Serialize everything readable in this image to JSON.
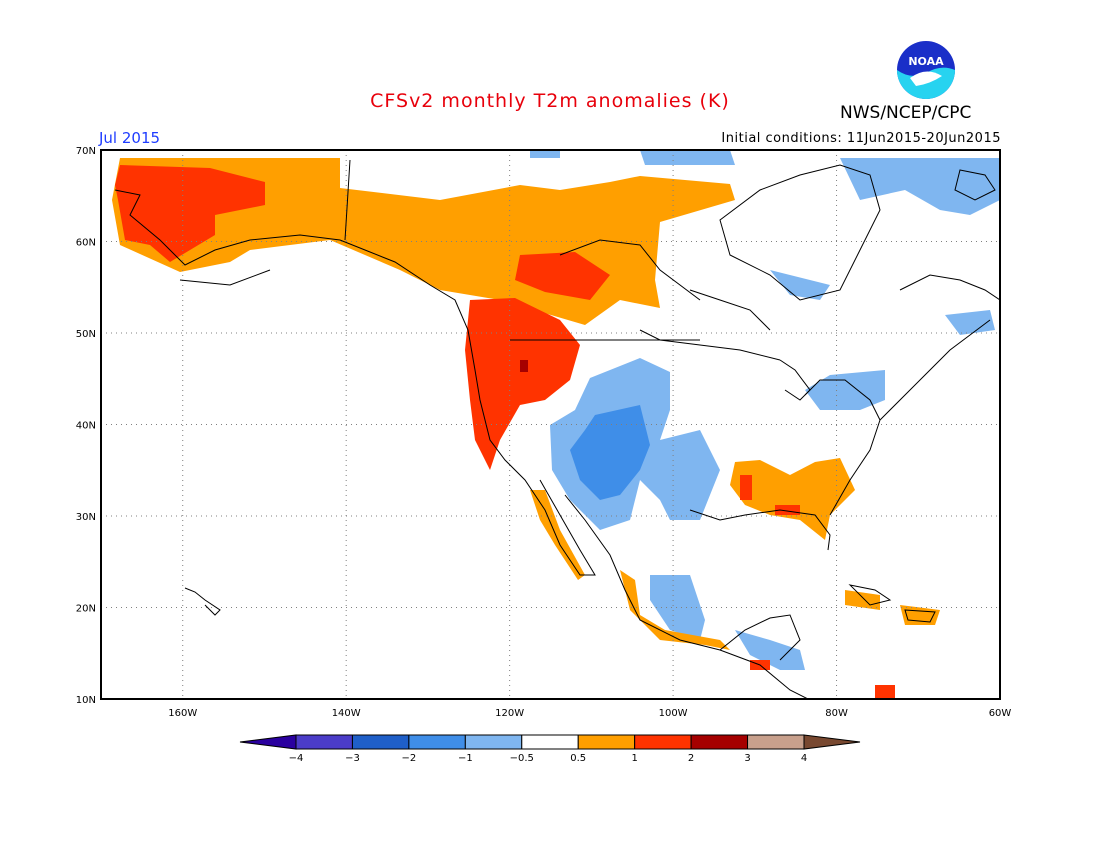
{
  "title": "CFSv2 monthly T2m anomalies (K)",
  "agency": "NWS/NCEP/CPC",
  "logo_text": "NOAA",
  "target_month": "Jul 2015",
  "initial_conditions": "Initial conditions: 11Jun2015-20Jun2015",
  "colors": {
    "title": "#e8000b",
    "month": "#1e3cff",
    "frame": "#000000",
    "grid": "#808080",
    "land_outline": "#000000"
  },
  "map": {
    "lat_labels": [
      "70N",
      "60N",
      "50N",
      "40N",
      "30N",
      "20N",
      "10N"
    ],
    "lon_labels": [
      "160W",
      "140W",
      "120W",
      "100W",
      "80W",
      "60W"
    ]
  },
  "colorbar": {
    "labels": [
      "-4",
      "-3",
      "-2",
      "-1",
      "-0.5",
      "0.5",
      "1",
      "2",
      "3",
      "4"
    ],
    "colors": [
      "#2a009f",
      "#4b3cc8",
      "#1f5fc8",
      "#3f8ee8",
      "#7fb6f0",
      "#ffffff",
      "#ff9f00",
      "#ff3300",
      "#a50000",
      "#c8a08c",
      "#784830"
    ]
  }
}
